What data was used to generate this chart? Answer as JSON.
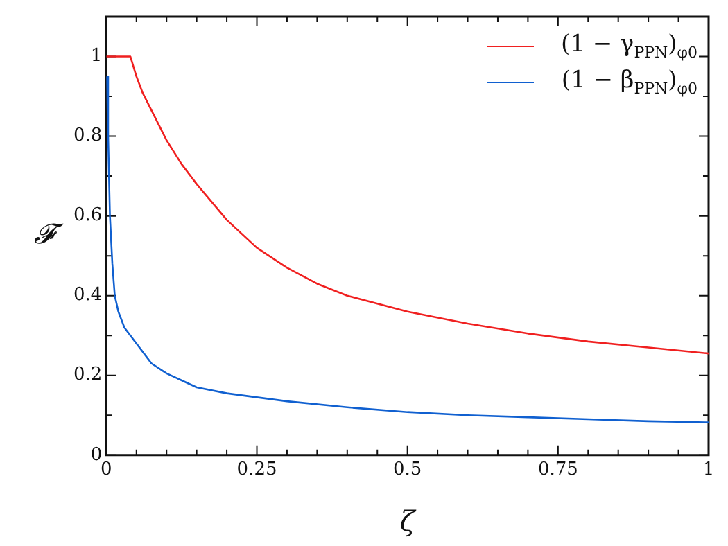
{
  "chart_data": {
    "type": "line",
    "xlabel": "ζ",
    "ylabel": "𝓕",
    "legend": "top right",
    "grid": false,
    "marker": "none",
    "line_style": "solid",
    "xlim": [
      0,
      1
    ],
    "ylim": [
      0,
      1.1
    ],
    "xticks": [
      0,
      {
        "value": 0.05,
        "label": null
      },
      {
        "value": 0.1,
        "label": null
      },
      {
        "value": 0.15,
        "label": null
      },
      {
        "value": 0.2,
        "label": null
      },
      0.25,
      {
        "value": 0.3,
        "label": null
      },
      {
        "value": 0.35,
        "label": null
      },
      {
        "value": 0.4,
        "label": null
      },
      {
        "value": 0.45,
        "label": null
      },
      0.5,
      {
        "value": 0.55,
        "label": null
      },
      {
        "value": 0.6,
        "label": null
      },
      {
        "value": 0.65,
        "label": null
      },
      {
        "value": 0.7,
        "label": null
      },
      0.75,
      {
        "value": 0.8,
        "label": null
      },
      {
        "value": 0.85,
        "label": null
      },
      {
        "value": 0.9,
        "label": null
      },
      {
        "value": 0.95,
        "label": null
      },
      1
    ],
    "yticks": [
      0,
      {
        "value": 0.1,
        "label": null
      },
      0.2,
      {
        "value": 0.3,
        "label": null
      },
      0.4,
      {
        "value": 0.5,
        "label": null
      },
      0.6,
      {
        "value": 0.7,
        "label": null
      },
      0.8,
      {
        "value": 0.9,
        "label": null
      },
      1
    ],
    "series": [
      {
        "name": "(1 − γ$_{PPN}$)$_{φ0}$",
        "color": "#f02020",
        "x": [
          0,
          0.02,
          0.04,
          0.05,
          0.06,
          0.08,
          0.1,
          0.125,
          0.15,
          0.2,
          0.25,
          0.3,
          0.35,
          0.4,
          0.5,
          0.6,
          0.7,
          0.8,
          0.9,
          1
        ],
        "values": [
          1,
          1,
          1,
          0.95,
          0.91,
          0.85,
          0.79,
          0.73,
          0.68,
          0.59,
          0.52,
          0.47,
          0.43,
          0.4,
          0.36,
          0.33,
          0.305,
          0.285,
          0.27,
          0.255
        ]
      },
      {
        "name": "(1 − β$_{PPN}$)$_{φ0}$",
        "color": "#1060d0",
        "x": [
          0.001,
          0.003,
          0.006,
          0.01,
          0.014,
          0.02,
          0.03,
          0.05,
          0.075,
          0.1,
          0.15,
          0.2,
          0.3,
          0.4,
          0.5,
          0.6,
          0.7,
          0.8,
          0.9,
          1
        ],
        "values": [
          0.95,
          0.8,
          0.6,
          0.48,
          0.4,
          0.36,
          0.32,
          0.28,
          0.23,
          0.205,
          0.17,
          0.155,
          0.135,
          0.12,
          0.108,
          0.1,
          0.095,
          0.09,
          0.085,
          0.082
        ]
      }
    ]
  }
}
